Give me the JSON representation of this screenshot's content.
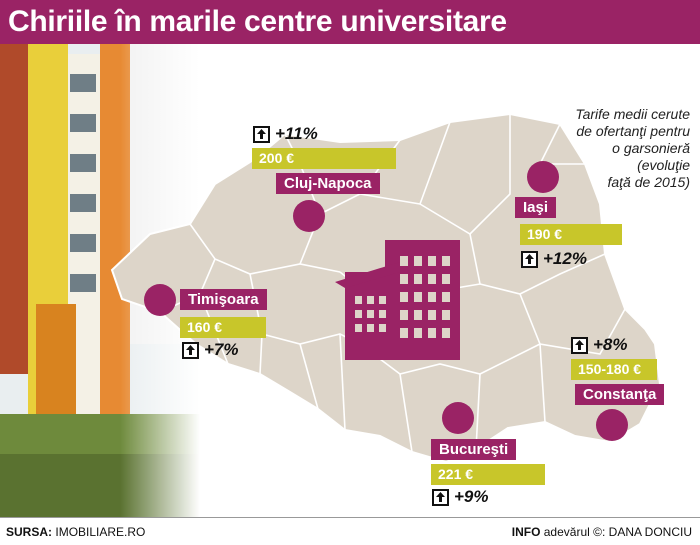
{
  "title": "Chiriile în marile centre universitare",
  "legend": {
    "line1": "Tarife medii cerute",
    "line2": "de ofertanţi pentru",
    "line3": "o garsonieră",
    "line4": "(evoluţie",
    "line5": "faţă de 2015)"
  },
  "cities": {
    "cluj": {
      "name": "Cluj-Napoca",
      "price": "200 €",
      "change": "+11%"
    },
    "iasi": {
      "name": "Iaşi",
      "price": "190 €",
      "change": "+12%"
    },
    "timisoara": {
      "name": "Timişoara",
      "price": "160 €",
      "change": "+7%"
    },
    "constanta": {
      "name": "Constanţa",
      "price": "150-180 €",
      "change": "+8%"
    },
    "bucuresti": {
      "name": "Bucureşti",
      "price": "221 €",
      "change": "+9%"
    }
  },
  "footer": {
    "source_label": "SURSA:",
    "source_value": "IMOBILIARE.RO",
    "info_label": "INFO",
    "brand": "adevărul",
    "copyright": "©:",
    "author": "DANA DONCIU"
  },
  "colors": {
    "accent": "#9a2365",
    "price_bar": "#c8c62a",
    "map_fill": "#ddd5c9"
  },
  "icons": [
    "up-arrow-icon",
    "buildings-icon",
    "city-marker-icon"
  ]
}
